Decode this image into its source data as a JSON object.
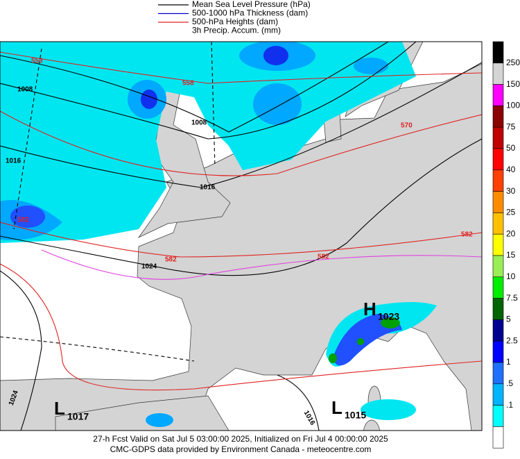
{
  "legend": [
    {
      "label": "Mean Sea Level Pressure (hPa)",
      "color": "#000000"
    },
    {
      "label": "500-1000 hPa Thickness (dam)",
      "color": "#0000cc"
    },
    {
      "label": "500-hPa Heights (dam)",
      "color": "#e02020"
    },
    {
      "label": "3h Precip. Accum. (mm)"
    }
  ],
  "colorbar": {
    "labels": [
      "250",
      "150",
      "100",
      "75",
      "50",
      "40",
      "30",
      "25",
      "20",
      "15",
      "10",
      "7.5",
      "5",
      "2.5",
      "1",
      ".5",
      ".1"
    ],
    "colors": [
      "#000000",
      "#d4d4d4",
      "#ff00ff",
      "#8b0000",
      "#c00000",
      "#ff0000",
      "#ff4000",
      "#ff8c00",
      "#ffc000",
      "#ffff00",
      "#99ee55",
      "#00ee00",
      "#006400",
      "#000090",
      "#0000ff",
      "#2070ff",
      "#00b4ff",
      "#00ffff",
      "#ffffff"
    ]
  },
  "contour_labels": [
    "558",
    "558",
    "1008",
    "1008",
    "1016",
    "1016",
    "570",
    "582",
    "582",
    "582",
    "582",
    "1024",
    "1024",
    "1016"
  ],
  "pressure_centers": [
    {
      "symbol": "H",
      "value": "1023"
    },
    {
      "symbol": "L",
      "value": "1017"
    },
    {
      "symbol": "L",
      "value": "1015"
    }
  ],
  "footer": [
    "27-h Fcst Valid on Sat Jul  5 03:00:00 2025, Initialized on Fri Jul  4 00:00:00 2025",
    "CMC-GDPS data provided by Environment Canada - meteocentre.com"
  ]
}
